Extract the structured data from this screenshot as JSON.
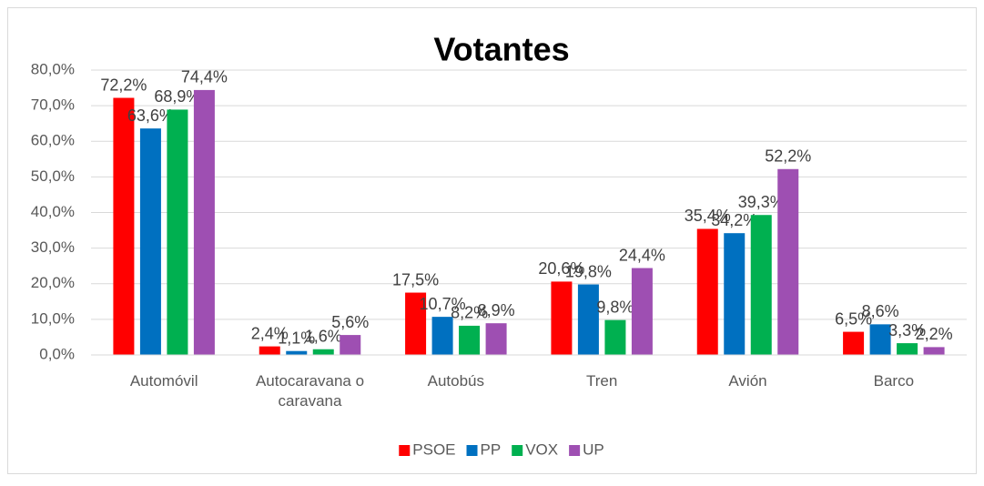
{
  "chart_data": {
    "type": "bar",
    "title": "Votantes",
    "categories": [
      "Automóvil",
      "Autocaravana o caravana",
      "Autobús",
      "Tren",
      "Avión",
      "Barco"
    ],
    "series": [
      {
        "name": "PSOE",
        "color": "#ff0000",
        "values": [
          72.2,
          2.4,
          17.5,
          20.6,
          35.4,
          6.5
        ],
        "value_labels": [
          "72,2%",
          "2,4%",
          "17,5%",
          "20,6%",
          "35,4%",
          "6,5%"
        ]
      },
      {
        "name": "PP",
        "color": "#0070c0",
        "values": [
          63.6,
          1.1,
          10.7,
          19.8,
          34.2,
          8.6
        ],
        "value_labels": [
          "63,6%",
          "1,1%",
          "10,7%",
          "19,8%",
          "34,2%",
          "8,6%"
        ]
      },
      {
        "name": "VOX",
        "color": "#00b050",
        "values": [
          68.9,
          1.6,
          8.2,
          9.8,
          39.3,
          3.3
        ],
        "value_labels": [
          "68,9%",
          "1,6%",
          "8,2%",
          "9,8%",
          "39,3%",
          "3,3%"
        ]
      },
      {
        "name": "UP",
        "color": "#9e4fb2",
        "values": [
          74.4,
          5.6,
          8.9,
          24.4,
          52.2,
          2.2
        ],
        "value_labels": [
          "74,4%",
          "5,6%",
          "8,9%",
          "24,4%",
          "52,2%",
          "2,2%"
        ]
      }
    ],
    "ylim": [
      0,
      80
    ],
    "yticks": [
      {
        "value": 0,
        "label": "0,0%"
      },
      {
        "value": 10,
        "label": "10,0%"
      },
      {
        "value": 20,
        "label": "20,0%"
      },
      {
        "value": 30,
        "label": "30,0%"
      },
      {
        "value": 40,
        "label": "40,0%"
      },
      {
        "value": 50,
        "label": "50,0%"
      },
      {
        "value": 60,
        "label": "60,0%"
      },
      {
        "value": 70,
        "label": "70,0%"
      },
      {
        "value": 80,
        "label": "80,0%"
      }
    ],
    "grid": true,
    "legend": "bottom"
  }
}
